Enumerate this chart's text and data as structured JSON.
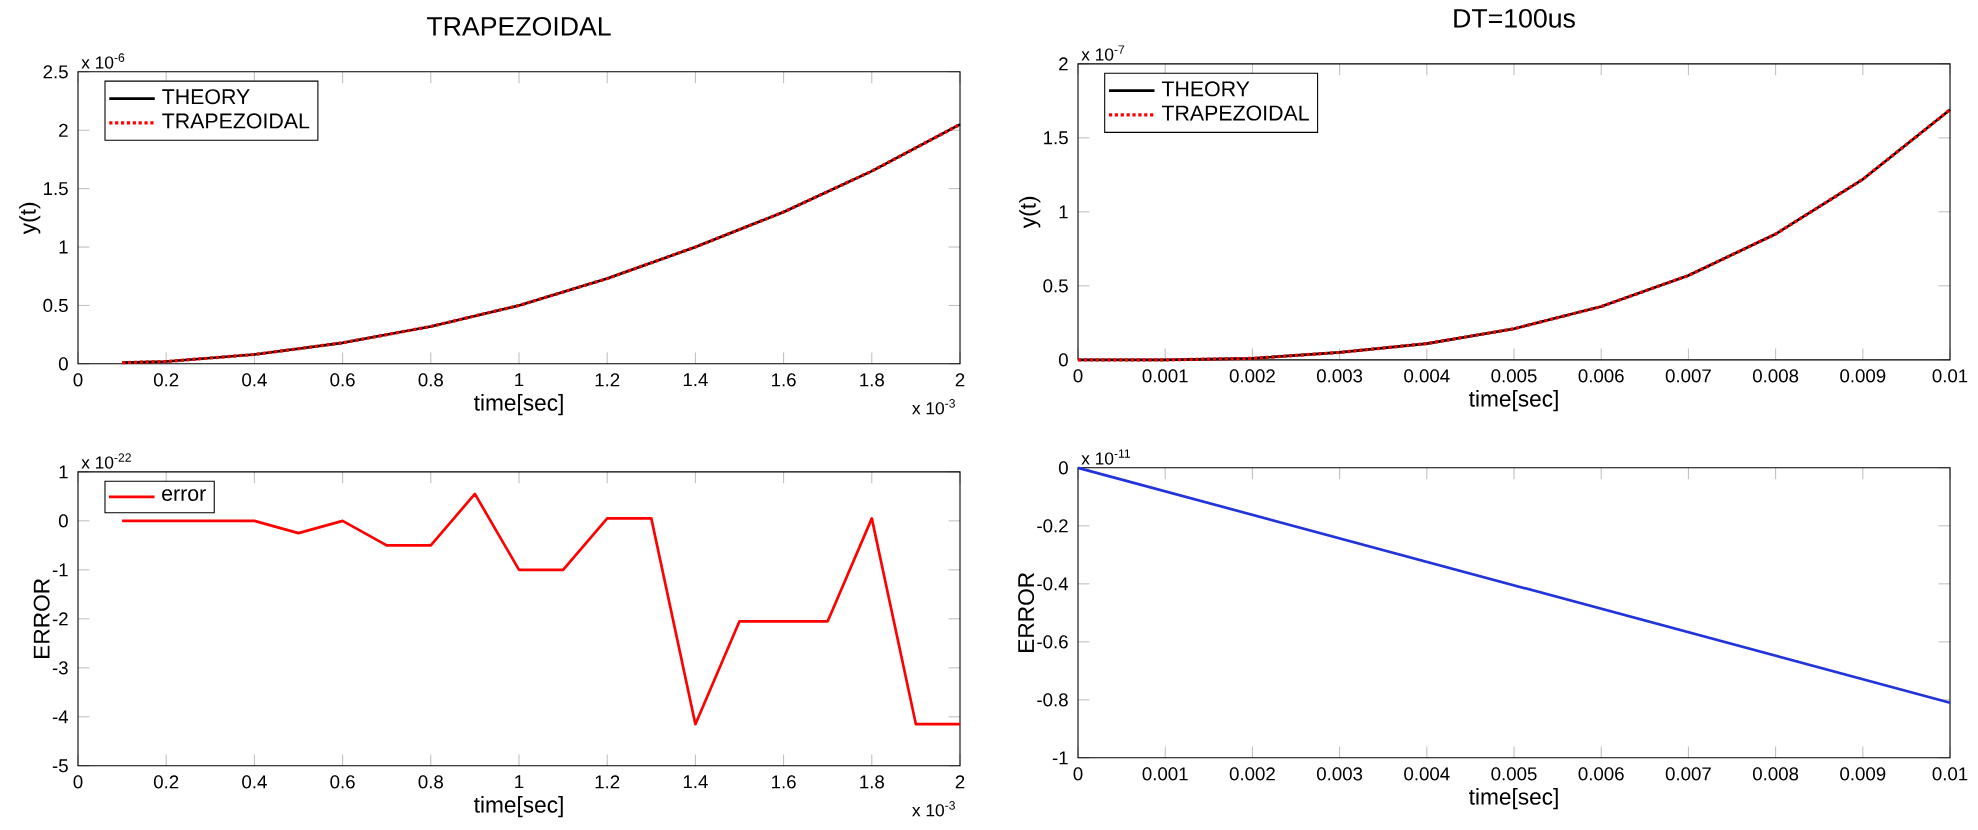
{
  "chart_data": [
    {
      "type": "line",
      "title": "TRAPEZOIDAL",
      "xlabel": "time[sec]",
      "ylabel": "y(t)",
      "legend": "top left",
      "xlim": [
        0,
        2
      ],
      "xticks": [
        0,
        0.2,
        0.4,
        0.6,
        0.8,
        1,
        1.2,
        1.4,
        1.6,
        1.8,
        2
      ],
      "ylim": [
        0,
        2.5
      ],
      "yticks": [
        0,
        0.5,
        1,
        1.5,
        2,
        2.5
      ],
      "annotations": [
        "x 10$^{-6}$",
        "x 10$^{-3}$"
      ],
      "series": [
        {
          "name": "THEORY",
          "color": "#000000",
          "line_style": "solid",
          "x": [
            0.1,
            0.2,
            0.4,
            0.6,
            0.8,
            1.0,
            1.2,
            1.4,
            1.6,
            1.8,
            2.0
          ],
          "values": [
            0.01,
            0.02,
            0.08,
            0.18,
            0.32,
            0.5,
            0.73,
            1.0,
            1.3,
            1.65,
            2.05
          ]
        },
        {
          "name": "TRAPEZOIDAL",
          "color": "#ff0000",
          "line_style": "dotted",
          "x": [
            0.1,
            0.2,
            0.4,
            0.6,
            0.8,
            1.0,
            1.2,
            1.4,
            1.6,
            1.8,
            2.0
          ],
          "values": [
            0.01,
            0.02,
            0.08,
            0.18,
            0.32,
            0.5,
            0.73,
            1.0,
            1.3,
            1.65,
            2.05
          ]
        }
      ]
    },
    {
      "type": "line",
      "title": "DT=100us",
      "xlabel": "time[sec]",
      "ylabel": "y(t)",
      "legend": "top left",
      "xlim": [
        0,
        0.01
      ],
      "xticks": [
        0,
        0.001,
        0.002,
        0.003,
        0.004,
        0.005,
        0.006,
        0.007,
        0.008,
        0.009,
        0.01
      ],
      "ylim": [
        0,
        2
      ],
      "yticks": [
        0,
        0.5,
        1,
        1.5,
        2
      ],
      "annotations": [
        "x 10$^{-7}$"
      ],
      "series": [
        {
          "name": "THEORY",
          "color": "#000000",
          "line_style": "solid",
          "x": [
            0,
            0.001,
            0.002,
            0.003,
            0.004,
            0.005,
            0.006,
            0.007,
            0.008,
            0.009,
            0.01
          ],
          "values": [
            0,
            0,
            0.01,
            0.05,
            0.11,
            0.21,
            0.36,
            0.57,
            0.85,
            1.22,
            1.69
          ]
        },
        {
          "name": "TRAPEZOIDAL",
          "color": "#ff0000",
          "line_style": "dotted",
          "x": [
            0,
            0.001,
            0.002,
            0.003,
            0.004,
            0.005,
            0.006,
            0.007,
            0.008,
            0.009,
            0.01
          ],
          "values": [
            0,
            0,
            0.01,
            0.05,
            0.11,
            0.21,
            0.36,
            0.57,
            0.85,
            1.22,
            1.69
          ]
        }
      ]
    },
    {
      "type": "line",
      "xlabel": "time[sec]",
      "ylabel": "ERROR",
      "legend": "top left",
      "xlim": [
        0,
        2
      ],
      "xticks": [
        0,
        0.2,
        0.4,
        0.6,
        0.8,
        1,
        1.2,
        1.4,
        1.6,
        1.8,
        2
      ],
      "ylim": [
        -5,
        1
      ],
      "yticks": [
        -5,
        -4,
        -3,
        -2,
        -1,
        0,
        1
      ],
      "annotations": [
        "x 10$^{-22}$",
        "x 10$^{-3}$"
      ],
      "series": [
        {
          "name": "error",
          "color": "#ff0000",
          "line_style": "solid",
          "x": [
            0.1,
            0.2,
            0.3,
            0.4,
            0.5,
            0.6,
            0.7,
            0.8,
            0.9,
            1.0,
            1.1,
            1.2,
            1.3,
            1.4,
            1.5,
            1.6,
            1.7,
            1.8,
            1.9,
            2.0
          ],
          "values": [
            0,
            0,
            0,
            0,
            -0.25,
            0,
            -0.5,
            -0.5,
            0.55,
            -1.0,
            -1.0,
            0.05,
            0.05,
            -4.15,
            -2.05,
            -2.05,
            -2.05,
            0.05,
            -4.15,
            -4.15
          ]
        }
      ]
    },
    {
      "type": "line",
      "xlabel": "time[sec]",
      "ylabel": "ERROR",
      "xlim": [
        0,
        0.01
      ],
      "xticks": [
        0,
        0.001,
        0.002,
        0.003,
        0.004,
        0.005,
        0.006,
        0.007,
        0.008,
        0.009,
        0.01
      ],
      "ylim": [
        -1,
        0
      ],
      "yticks": [
        -1,
        -0.8,
        -0.6,
        -0.4,
        -0.2,
        0
      ],
      "annotations": [
        "x 10$^{-11}$"
      ],
      "series": [
        {
          "color": "#2233dd",
          "line_style": "solid",
          "x": [
            0,
            0.01
          ],
          "values": [
            0,
            -0.81
          ]
        }
      ]
    }
  ]
}
